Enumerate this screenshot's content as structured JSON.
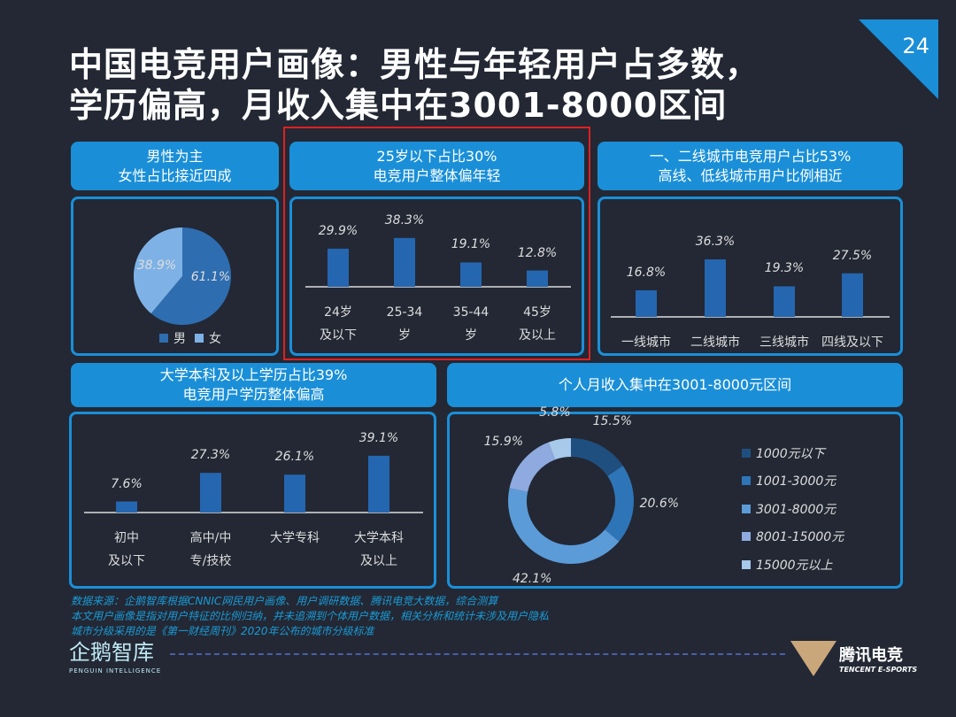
{
  "title": {
    "line1": "中国电竞用户画像：男性与年轻用户占多数，",
    "line2": "学历偏高，月收入集中在3001-8000区间"
  },
  "page_number": "24",
  "gender": {
    "header1": "男性为主",
    "header2": "女性占比接近四成",
    "legend": [
      "男",
      "女"
    ],
    "chart_data": {
      "type": "pie",
      "categories": [
        "男",
        "女"
      ],
      "values": [
        61.1,
        38.9
      ],
      "labels": [
        "61.1%",
        "38.9%"
      ],
      "colors": [
        "#2e6db0",
        "#7eb2e6"
      ]
    }
  },
  "age": {
    "header1": "25岁以下占比30%",
    "header2": "电竞用户整体偏年轻",
    "chart_data": {
      "type": "bar",
      "categories": [
        [
          "24岁",
          "及以下"
        ],
        [
          "25-34",
          "岁"
        ],
        [
          "35-44",
          "岁"
        ],
        [
          "45岁",
          "及以上"
        ]
      ],
      "values": [
        29.9,
        38.3,
        19.1,
        12.8
      ],
      "labels": [
        "29.9%",
        "38.3%",
        "19.1%",
        "12.8%"
      ],
      "color": "#2566b0"
    }
  },
  "city": {
    "header1": "一、二线城市电竞用户占比53%",
    "header2": "高线、低线城市用户比例相近",
    "chart_data": {
      "type": "bar",
      "categories": [
        [
          "一线城市"
        ],
        [
          "二线城市"
        ],
        [
          "三线城市"
        ],
        [
          "四线及以下"
        ]
      ],
      "values": [
        16.8,
        36.3,
        19.3,
        27.5
      ],
      "labels": [
        "16.8%",
        "36.3%",
        "19.3%",
        "27.5%"
      ],
      "color": "#2566b0"
    }
  },
  "edu": {
    "header1": "大学本科及以上学历占比39%",
    "header2": "电竞用户学历整体偏高",
    "chart_data": {
      "type": "bar",
      "categories": [
        [
          "初中",
          "及以下"
        ],
        [
          "高中/中",
          "专/技校"
        ],
        [
          "大学专科"
        ],
        [
          "大学本科",
          "及以上"
        ]
      ],
      "values": [
        7.6,
        27.3,
        26.1,
        39.1
      ],
      "labels": [
        "7.6%",
        "27.3%",
        "26.1%",
        "39.1%"
      ],
      "color": "#2566b0"
    }
  },
  "income": {
    "header": "个人月收入集中在3001-8000元区间",
    "chart_data": {
      "type": "pie",
      "categories": [
        "1000元以下",
        "1001-3000元",
        "3001-8000元",
        "8001-15000元",
        "15000元以上"
      ],
      "values": [
        15.5,
        20.6,
        42.1,
        15.9,
        5.8
      ],
      "labels": [
        "15.5%",
        "20.6%",
        "42.1%",
        "15.9%",
        "5.8%"
      ],
      "colors": [
        "#1f4f7e",
        "#2e75b8",
        "#5b9bd8",
        "#8eaadf",
        "#a7c9ea"
      ]
    }
  },
  "footnotes": [
    "数据来源：企鹅智库根据CNNIC网民用户画像、用户调研数据、腾讯电竞大数据，综合测算",
    "本文用户画像是指对用户特征的比例归纳，并未追溯到个体用户数据，相关分析和统计未涉及用户隐私",
    "城市分级采用的是《第一财经周刊》2020年公布的城市分级标准"
  ],
  "logos": {
    "left": "企鹅智库",
    "left_sub": "PENGUIN INTELLIGENCE",
    "right": "腾讯电竞",
    "right_sub": "TENCENT E-SPORTS"
  }
}
